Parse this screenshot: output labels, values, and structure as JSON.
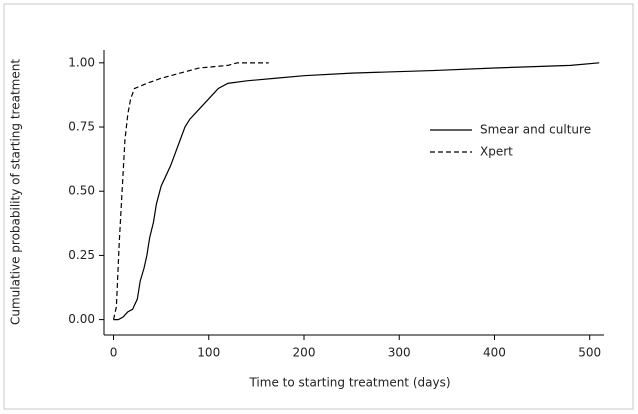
{
  "chart_data": {
    "type": "line",
    "x_label": "Time to starting treatment (days)",
    "y_label": "Cumulative probability of starting treatment",
    "xlim": [
      -10,
      515
    ],
    "ylim": [
      -0.06,
      1.05
    ],
    "xticks": [
      0,
      100,
      200,
      300,
      400,
      500
    ],
    "yticks": [
      {
        "value": 0,
        "label": "0.00"
      },
      0.25,
      {
        "value": 0.5,
        "label": "0.50"
      },
      0.75,
      {
        "value": 1,
        "label": "1.00"
      }
    ],
    "legend": "upper right",
    "series": [
      {
        "name": "Smear and culture",
        "color": "#000000",
        "line_style": "solid",
        "x": [
          0,
          5,
          10,
          15,
          20,
          25,
          28,
          32,
          35,
          38,
          42,
          45,
          50,
          55,
          60,
          65,
          70,
          75,
          80,
          90,
          100,
          110,
          120,
          140,
          170,
          200,
          250,
          335,
          400,
          480,
          510
        ],
        "values": [
          0,
          0,
          0.01,
          0.03,
          0.04,
          0.08,
          0.15,
          0.2,
          0.25,
          0.32,
          0.38,
          0.45,
          0.52,
          0.56,
          0.6,
          0.65,
          0.7,
          0.75,
          0.78,
          0.82,
          0.86,
          0.9,
          0.92,
          0.93,
          0.94,
          0.95,
          0.96,
          0.97,
          0.98,
          0.99,
          1
        ]
      },
      {
        "name": "Xpert",
        "color": "#000000",
        "line_style": "dashed",
        "x": [
          0,
          3,
          6,
          9,
          12,
          15,
          18,
          22,
          35,
          50,
          70,
          90,
          120,
          130,
          163
        ],
        "values": [
          0,
          0.05,
          0.3,
          0.5,
          0.7,
          0.8,
          0.86,
          0.9,
          0.92,
          0.94,
          0.96,
          0.98,
          0.99,
          1,
          1
        ]
      }
    ]
  }
}
